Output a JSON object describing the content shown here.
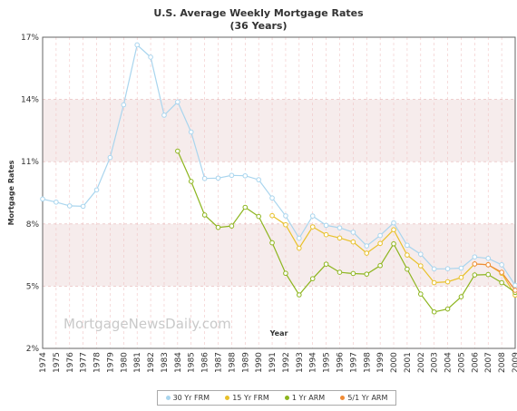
{
  "chart_data": {
    "type": "line",
    "title": "U.S. Average Weekly Mortgage Rates",
    "subtitle": "(36 Years)",
    "xlabel": "Year",
    "ylabel": "Mortgage Rates",
    "watermark": "MortgageNewsDaily.com",
    "x": [
      "1974",
      "1975",
      "1976",
      "1977",
      "1978",
      "1979",
      "1980",
      "1981",
      "1982",
      "1983",
      "1984",
      "1985",
      "1986",
      "1987",
      "1988",
      "1989",
      "1990",
      "1991",
      "1992",
      "1993",
      "1994",
      "1995",
      "1996",
      "1997",
      "1998",
      "1999",
      "2000",
      "2001",
      "2002",
      "2003",
      "2004",
      "2005",
      "2006",
      "2007",
      "2008",
      "2009"
    ],
    "y_ticks": [
      {
        "value": 2,
        "label": "2%"
      },
      {
        "value": 5,
        "label": "5%"
      },
      {
        "value": 8,
        "label": "8%"
      },
      {
        "value": 11,
        "label": "11%"
      },
      {
        "value": 14,
        "label": "14%"
      },
      {
        "value": 17,
        "label": "17%"
      }
    ],
    "ylim": [
      2,
      17
    ],
    "grid": true,
    "legend_position": "bottom",
    "series": [
      {
        "name": "30 Yr FRM",
        "color": "#a9d5ee",
        "values": [
          9.2,
          9.05,
          8.87,
          8.85,
          9.64,
          11.2,
          13.74,
          16.63,
          16.04,
          13.24,
          13.88,
          12.43,
          10.19,
          10.21,
          10.34,
          10.32,
          10.13,
          9.25,
          8.39,
          7.31,
          8.38,
          7.93,
          7.81,
          7.6,
          6.94,
          7.44,
          8.05,
          6.97,
          6.54,
          5.83,
          5.84,
          5.87,
          6.41,
          6.34,
          6.03,
          5.04
        ]
      },
      {
        "name": "15 Yr FRM",
        "color": "#e8c12a",
        "values": [
          null,
          null,
          null,
          null,
          null,
          null,
          null,
          null,
          null,
          null,
          null,
          null,
          null,
          null,
          null,
          null,
          null,
          8.4,
          7.96,
          6.83,
          7.86,
          7.48,
          7.32,
          7.13,
          6.59,
          7.06,
          7.72,
          6.5,
          5.98,
          5.17,
          5.21,
          5.42,
          6.07,
          6.03,
          5.62,
          4.57
        ]
      },
      {
        "name": "1 Yr ARM",
        "color": "#8db51e",
        "values": [
          null,
          null,
          null,
          null,
          null,
          null,
          null,
          null,
          null,
          null,
          11.51,
          10.05,
          8.43,
          7.83,
          7.9,
          8.8,
          8.36,
          7.09,
          5.62,
          4.58,
          5.36,
          6.06,
          5.67,
          5.61,
          5.58,
          5.99,
          7.04,
          5.82,
          4.62,
          3.76,
          3.9,
          4.49,
          5.54,
          5.56,
          5.17,
          4.7
        ]
      },
      {
        "name": "5/1 Yr ARM",
        "color": "#ef8b36",
        "values": [
          null,
          null,
          null,
          null,
          null,
          null,
          null,
          null,
          null,
          null,
          null,
          null,
          null,
          null,
          null,
          null,
          null,
          null,
          null,
          null,
          null,
          null,
          null,
          null,
          null,
          null,
          null,
          null,
          null,
          null,
          null,
          null,
          6.07,
          6.03,
          5.67,
          4.8
        ]
      }
    ]
  }
}
